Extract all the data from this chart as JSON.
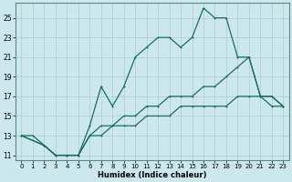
{
  "xlabel": "Humidex (Indice chaleur)",
  "bg_color": "#cce8ee",
  "grid_color": "#aacccc",
  "line_color": "#1a6e5e",
  "xlim": [
    -0.5,
    23.5
  ],
  "ylim": [
    10.5,
    26.5
  ],
  "xticks": [
    0,
    1,
    2,
    3,
    4,
    5,
    6,
    7,
    8,
    9,
    10,
    11,
    12,
    13,
    14,
    15,
    16,
    17,
    18,
    19,
    20,
    21,
    22,
    23
  ],
  "yticks": [
    11,
    13,
    15,
    17,
    19,
    21,
    23,
    25
  ],
  "line1_x": [
    0,
    1,
    2,
    3,
    4,
    5,
    6,
    7,
    8,
    9,
    10,
    11,
    12,
    13,
    14,
    15,
    16,
    17,
    18,
    19,
    20,
    21,
    22,
    23
  ],
  "line1_y": [
    13,
    13,
    12,
    11,
    11,
    11,
    14,
    18,
    16,
    18,
    21,
    22,
    23,
    23,
    22,
    23,
    26,
    25,
    25,
    21,
    21,
    17,
    17,
    16
  ],
  "line2_x": [
    0,
    2,
    3,
    4,
    5,
    6,
    7,
    8,
    9,
    10,
    11,
    12,
    13,
    14,
    15,
    16,
    17,
    18,
    19,
    20,
    21,
    22,
    23
  ],
  "line2_y": [
    13,
    12,
    11,
    11,
    11,
    13,
    14,
    14,
    15,
    15,
    16,
    16,
    17,
    17,
    17,
    18,
    18,
    19,
    20,
    21,
    17,
    17,
    16
  ],
  "line3_x": [
    0,
    2,
    3,
    4,
    5,
    6,
    7,
    8,
    9,
    10,
    11,
    12,
    13,
    14,
    15,
    16,
    17,
    18,
    19,
    20,
    21,
    22,
    23
  ],
  "line3_y": [
    13,
    12,
    11,
    11,
    11,
    13,
    13,
    14,
    14,
    14,
    15,
    15,
    15,
    16,
    16,
    16,
    16,
    16,
    17,
    17,
    17,
    16,
    16
  ]
}
